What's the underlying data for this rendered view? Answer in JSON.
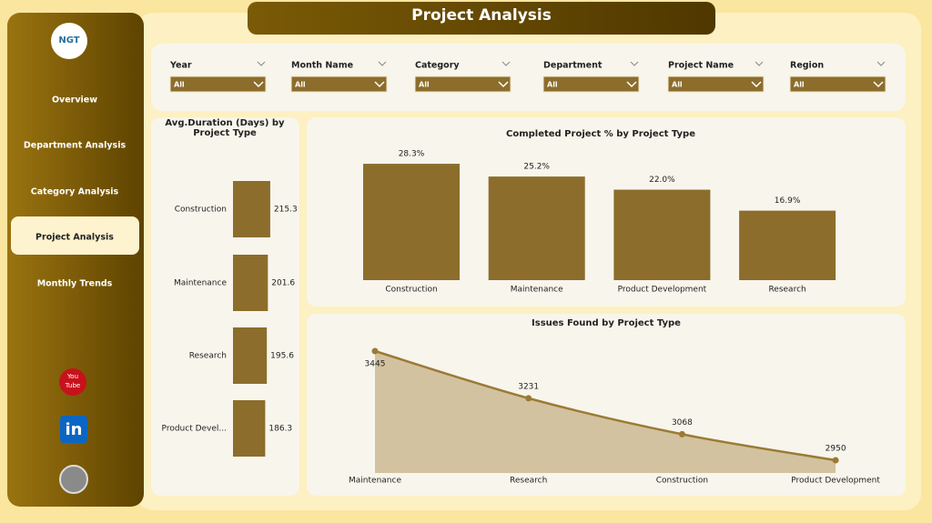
{
  "header": {
    "title": "Project Analysis"
  },
  "sidebar": {
    "logo": "NGT",
    "nav": [
      "Overview",
      "Department Analysis",
      "Category Analysis",
      "Project Analysis",
      "Monthly Trends"
    ],
    "youtube": [
      "You",
      "Tube"
    ],
    "linkedin": "in"
  },
  "filters": [
    {
      "label": "Year",
      "value": "All"
    },
    {
      "label": "Month Name",
      "value": "All"
    },
    {
      "label": "Category",
      "value": "All"
    },
    {
      "label": "Department",
      "value": "All"
    },
    {
      "label": "Project Name",
      "value": "All"
    },
    {
      "label": "Region",
      "value": "All"
    }
  ],
  "chart_data": [
    {
      "type": "hbar",
      "title": "Avg.Duration (Days) by Project Type",
      "categories": [
        "Construction",
        "Maintenance",
        "Research",
        "Product Devel..."
      ],
      "values": [
        215.3,
        201.6,
        195.6,
        186.3
      ],
      "color": "#8c6d2c"
    },
    {
      "type": "bar",
      "title": "Completed Project % by Project Type",
      "categories": [
        "Construction",
        "Maintenance",
        "Product Development",
        "Research"
      ],
      "values": [
        28.3,
        25.2,
        22.0,
        16.9
      ],
      "value_labels": [
        "28.3%",
        "25.2%",
        "22.0%",
        "16.9%"
      ],
      "color": "#8c6d2c"
    },
    {
      "type": "area",
      "title": "Issues Found by Project Type",
      "categories": [
        "Maintenance",
        "Research",
        "Construction",
        "Product Development"
      ],
      "values": [
        3445,
        3231,
        3068,
        2950
      ],
      "color": "#9b7a35",
      "fill": "#d3c29f"
    }
  ]
}
